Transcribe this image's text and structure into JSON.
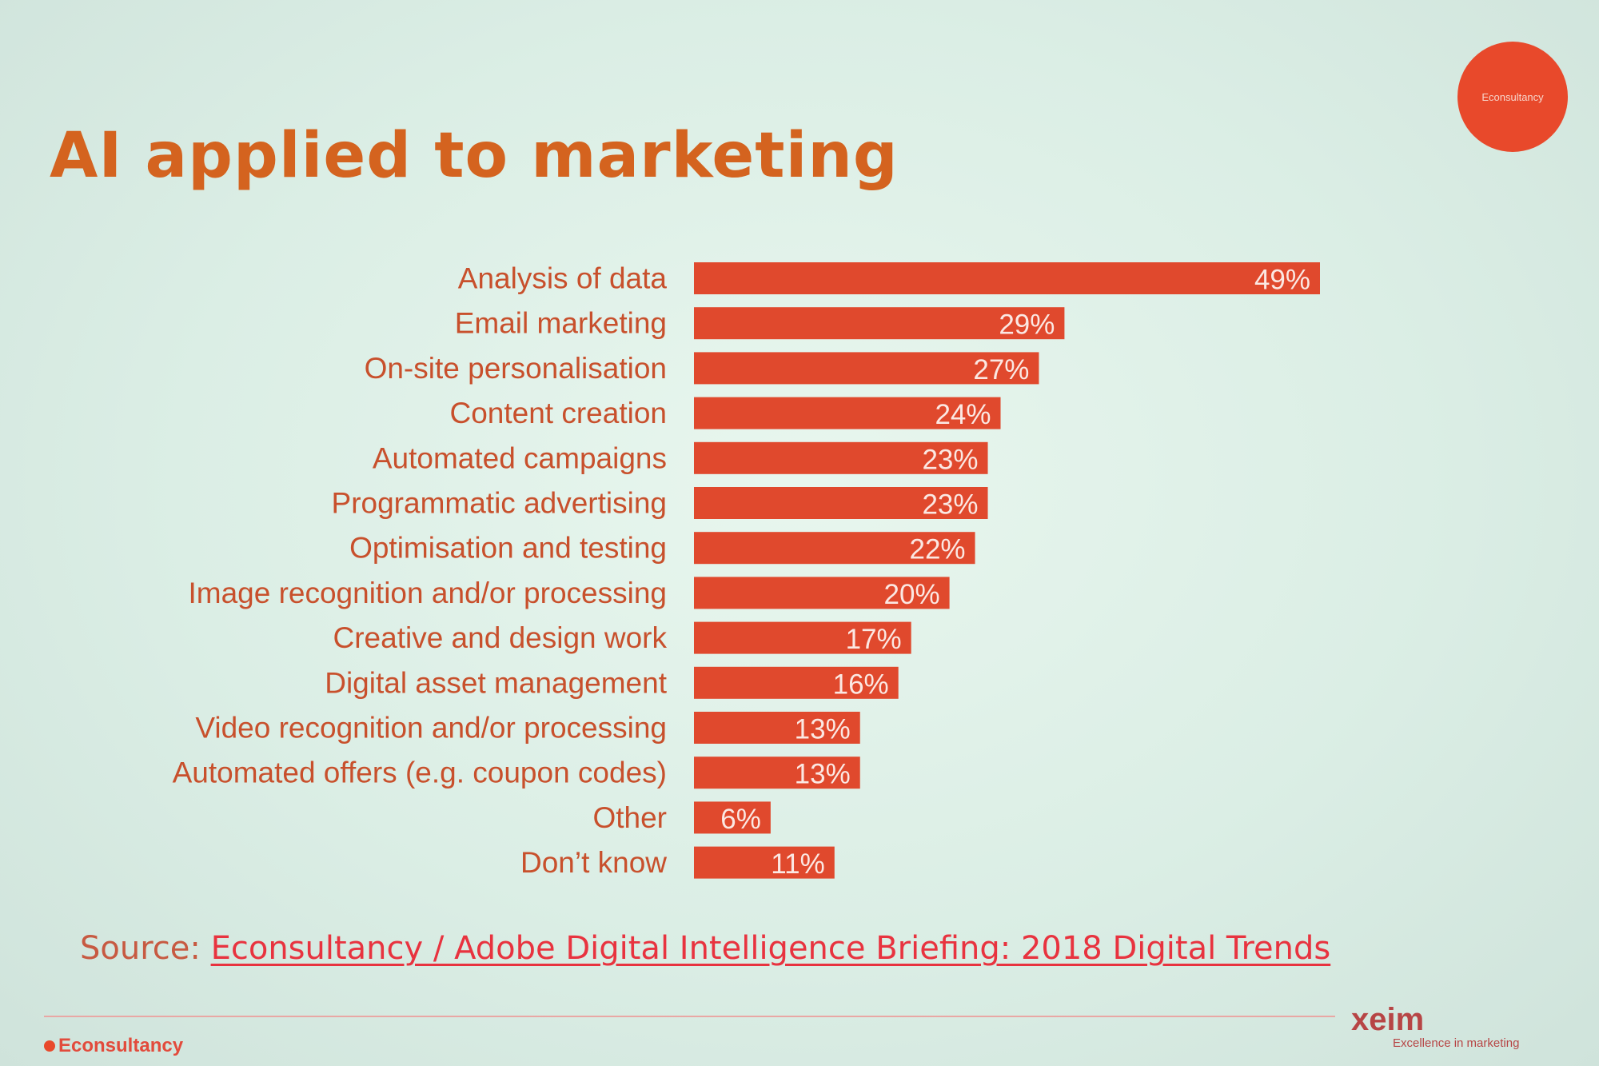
{
  "slide": {
    "title": "AI applied to marketing",
    "logo_badge": "Econsultancy",
    "source_prefix": "Source: ",
    "source_link": "Econsultancy / Adobe Digital Intelligence Briefing: 2018 Digital Trends",
    "footer_brand": "Econsultancy",
    "xeim_wordmark": "xeim",
    "xeim_tagline": "Excellence in marketing"
  },
  "colors": {
    "title": "#d4631f",
    "bar": "#e0492d",
    "logo_circle": "#e8492b",
    "source_link": "#e8333f"
  },
  "chart_data": {
    "type": "bar",
    "orientation": "horizontal",
    "title": "AI applied to marketing",
    "xlabel": "",
    "ylabel": "",
    "unit": "%",
    "xlim": [
      0,
      49
    ],
    "grid": false,
    "legend": "none",
    "categories": [
      "Analysis of data",
      "Email marketing",
      "On-site personalisation",
      "Content creation",
      "Automated campaigns",
      "Programmatic advertising",
      "Optimisation and testing",
      "Image recognition and/or processing",
      "Creative and design work",
      "Digital asset management",
      "Video recognition and/or processing",
      "Automated offers (e.g. coupon codes)",
      "Other",
      "Don’t know"
    ],
    "values": [
      49,
      29,
      27,
      24,
      23,
      23,
      22,
      20,
      17,
      16,
      13,
      13,
      6,
      11
    ],
    "value_labels": [
      "49%",
      "29%",
      "27%",
      "24%",
      "23%",
      "23%",
      "22%",
      "20%",
      "17%",
      "16%",
      "13%",
      "13%",
      "6%",
      "11%"
    ]
  }
}
